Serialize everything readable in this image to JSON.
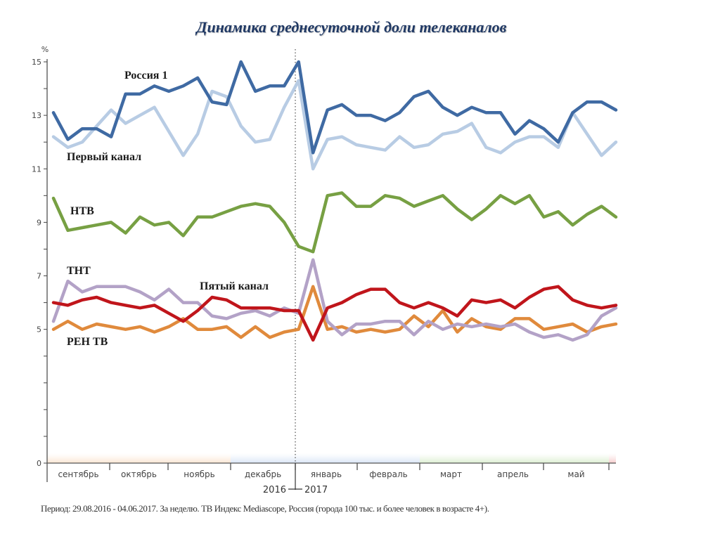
{
  "chart_data": {
    "type": "line",
    "title": "Динамика среднесуточной доли телеканалов",
    "ylabel": "%",
    "xlabel": "",
    "ylim": [
      0,
      15
    ],
    "yticks": [
      0,
      5,
      7,
      9,
      11,
      13,
      15
    ],
    "months": [
      "сентябрь",
      "октябрь",
      "ноябрь",
      "декабрь",
      "январь",
      "февраль",
      "март",
      "апрель",
      "май"
    ],
    "year_divider": {
      "left": "2016",
      "right": "2017"
    },
    "grid": false,
    "series": [
      {
        "name": "Россия 1",
        "color": "#3f6aa3",
        "values": [
          13.1,
          12.1,
          12.5,
          12.5,
          12.2,
          13.8,
          13.8,
          14.1,
          13.9,
          14.1,
          14.4,
          13.5,
          13.4,
          15.0,
          13.9,
          14.1,
          14.1,
          15.0,
          11.6,
          13.2,
          13.4,
          13.0,
          13.0,
          12.8,
          13.1,
          13.7,
          13.9,
          13.3,
          13.0,
          13.3,
          13.1,
          13.1,
          12.3,
          12.8,
          12.5,
          12.0,
          13.1,
          13.5,
          13.5,
          13.2
        ]
      },
      {
        "name": "Первый канал",
        "color": "#b8cce4",
        "values": [
          12.2,
          11.8,
          12.0,
          12.6,
          13.2,
          12.7,
          13.0,
          13.3,
          12.4,
          11.5,
          12.3,
          13.9,
          13.7,
          12.6,
          12.0,
          12.1,
          13.3,
          14.3,
          11.0,
          12.1,
          12.2,
          11.9,
          11.8,
          11.7,
          12.2,
          11.8,
          11.9,
          12.3,
          12.4,
          12.7,
          11.8,
          11.6,
          12.0,
          12.2,
          12.2,
          11.8,
          13.1,
          12.3,
          11.5,
          12.0
        ]
      },
      {
        "name": "НТВ",
        "color": "#77a043",
        "values": [
          9.9,
          8.7,
          8.8,
          8.9,
          9.0,
          8.6,
          9.2,
          8.9,
          9.0,
          8.5,
          9.2,
          9.2,
          9.4,
          9.6,
          9.7,
          9.6,
          9.0,
          8.1,
          7.9,
          10.0,
          10.1,
          9.6,
          9.6,
          10.0,
          9.9,
          9.6,
          9.8,
          10.0,
          9.5,
          9.1,
          9.5,
          10.0,
          9.7,
          10.0,
          9.2,
          9.4,
          8.9,
          9.3,
          9.6,
          9.2
        ]
      },
      {
        "name": "ТНТ",
        "color": "#b3a2c7",
        "values": [
          5.3,
          6.8,
          6.4,
          6.6,
          6.6,
          6.6,
          6.4,
          6.1,
          6.5,
          6.0,
          6.0,
          5.5,
          5.4,
          5.6,
          5.7,
          5.5,
          5.8,
          5.6,
          7.6,
          5.3,
          4.8,
          5.2,
          5.2,
          5.3,
          5.3,
          4.8,
          5.3,
          5.0,
          5.2,
          5.1,
          5.2,
          5.1,
          5.2,
          4.9,
          4.7,
          4.8,
          4.6,
          4.8,
          5.5,
          5.8
        ]
      },
      {
        "name": "Пятый канал",
        "color": "#c0151b",
        "values": [
          6.0,
          5.9,
          6.1,
          6.2,
          6.0,
          5.9,
          5.8,
          5.9,
          5.6,
          5.3,
          5.7,
          6.2,
          6.1,
          5.8,
          5.8,
          5.8,
          5.7,
          5.7,
          4.6,
          5.8,
          6.0,
          6.3,
          6.5,
          6.5,
          6.0,
          5.8,
          6.0,
          5.8,
          5.5,
          6.1,
          6.0,
          6.1,
          5.8,
          6.2,
          6.5,
          6.6,
          6.1,
          5.9,
          5.8,
          5.9
        ]
      },
      {
        "name": "РЕН ТВ",
        "color": "#e08a3c",
        "values": [
          5.0,
          5.3,
          5.0,
          5.2,
          5.1,
          5.0,
          5.1,
          4.9,
          5.1,
          5.4,
          5.0,
          5.0,
          5.1,
          4.7,
          5.1,
          4.7,
          4.9,
          5.0,
          6.6,
          5.0,
          5.1,
          4.9,
          5.0,
          4.9,
          5.0,
          5.5,
          5.1,
          5.7,
          4.9,
          5.4,
          5.1,
          5.0,
          5.4,
          5.4,
          5.0,
          5.1,
          5.2,
          4.9,
          5.1,
          5.2
        ]
      }
    ]
  },
  "footer": "Период: 29.08.2016 - 04.06.2017. За неделю. ТВ Индекс Mediascope, Россия (города 100 тыс. и более человек в возрасте 4+)."
}
